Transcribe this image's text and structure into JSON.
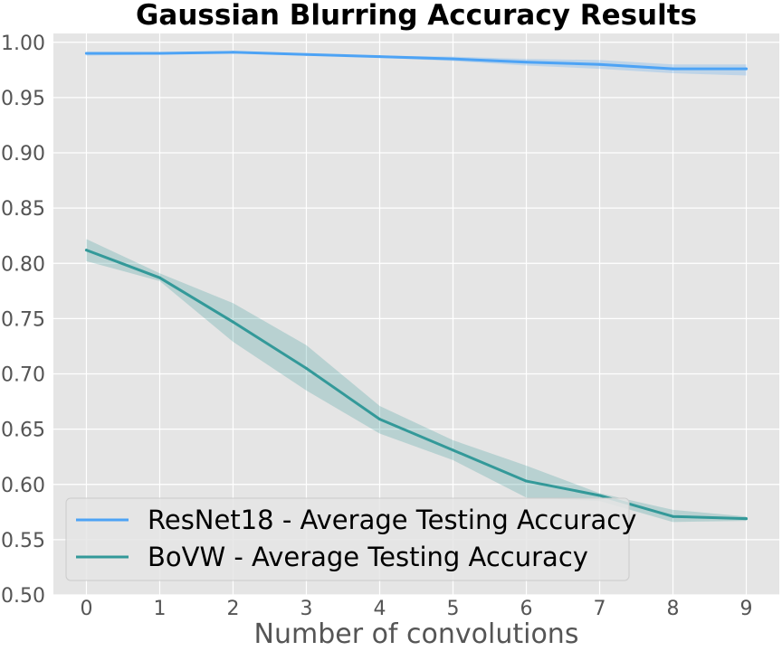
{
  "chart_data": {
    "type": "line",
    "title": "Gaussian Blurring Accuracy Results",
    "xlabel": "Number of convolutions",
    "ylabel": "",
    "x": [
      0,
      1,
      2,
      3,
      4,
      5,
      6,
      7,
      8,
      9
    ],
    "xlim": [
      -0.45,
      9.45
    ],
    "ylim": [
      0.5,
      1.008
    ],
    "xticks": [
      "0",
      "1",
      "2",
      "3",
      "4",
      "5",
      "6",
      "7",
      "8",
      "9"
    ],
    "yticks": [
      "0.50",
      "0.55",
      "0.60",
      "0.65",
      "0.70",
      "0.75",
      "0.80",
      "0.85",
      "0.90",
      "0.95",
      "1.00"
    ],
    "grid": true,
    "legend_position": "lower-left",
    "series": [
      {
        "name": "ResNet18 - Average Testing Accuracy",
        "color": "#4da3f5",
        "values": [
          0.99,
          0.99,
          0.991,
          0.989,
          0.987,
          0.985,
          0.982,
          0.98,
          0.976,
          0.976
        ],
        "lower": [
          0.988,
          0.989,
          0.99,
          0.988,
          0.986,
          0.983,
          0.979,
          0.976,
          0.972,
          0.97
        ],
        "upper": [
          0.991,
          0.991,
          0.992,
          0.99,
          0.988,
          0.987,
          0.985,
          0.984,
          0.98,
          0.98
        ]
      },
      {
        "name": "BoVW - Average Testing Accuracy",
        "color": "#339999",
        "values": [
          0.812,
          0.787,
          0.747,
          0.705,
          0.659,
          0.631,
          0.603,
          0.59,
          0.571,
          0.569
        ],
        "lower": [
          0.802,
          0.784,
          0.729,
          0.685,
          0.646,
          0.622,
          0.588,
          0.585,
          0.566,
          0.567
        ],
        "upper": [
          0.822,
          0.791,
          0.764,
          0.726,
          0.671,
          0.64,
          0.617,
          0.592,
          0.577,
          0.571
        ]
      }
    ]
  }
}
